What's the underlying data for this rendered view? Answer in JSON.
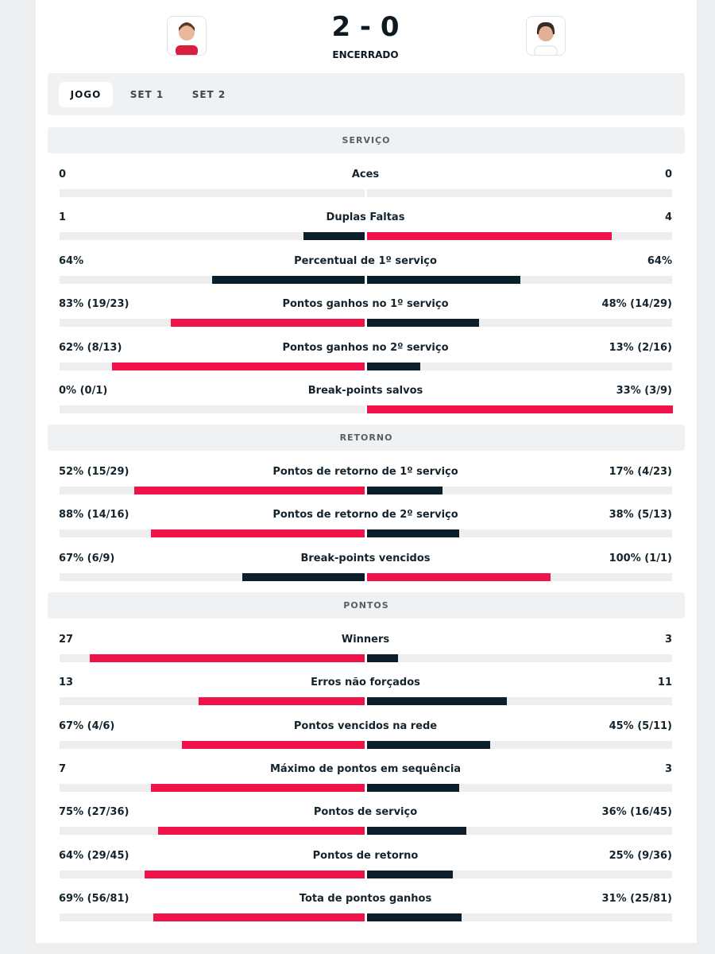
{
  "header": {
    "score": "2 - 0",
    "status": "ENCERRADO"
  },
  "tabs": [
    "JOGO",
    "SET 1",
    "SET 2"
  ],
  "sections": [
    {
      "title": "SERVIÇO",
      "rows": [
        {
          "label": "Aces",
          "left": 0,
          "right": 0
        },
        {
          "label": "Duplas Faltas",
          "left": 1,
          "right": 4
        },
        {
          "label": "Percentual de 1º serviço",
          "left": {
            "value": 64,
            "label": "64%"
          },
          "right": {
            "value": 64,
            "label": "64%"
          }
        },
        {
          "label": "Pontos ganhos no 1º serviço",
          "left": {
            "value": 83,
            "label": "83% (19/23)"
          },
          "right": {
            "value": 48,
            "label": "48% (14/29)"
          }
        },
        {
          "label": "Pontos ganhos no 2º serviço",
          "left": {
            "value": 62,
            "label": "62% (8/13)"
          },
          "right": {
            "value": 13,
            "label": "13% (2/16)"
          }
        },
        {
          "label": "Break-points salvos",
          "left": {
            "value": 0,
            "label": "0% (0/1)"
          },
          "right": {
            "value": 33,
            "label": "33% (3/9)"
          }
        }
      ]
    },
    {
      "title": "RETORNO",
      "rows": [
        {
          "label": "Pontos de retorno de 1º serviço",
          "left": {
            "value": 52,
            "label": "52% (15/29)"
          },
          "right": {
            "value": 17,
            "label": "17% (4/23)"
          }
        },
        {
          "label": "Pontos de retorno de 2º serviço",
          "left": {
            "value": 88,
            "label": "88% (14/16)"
          },
          "right": {
            "value": 38,
            "label": "38% (5/13)"
          }
        },
        {
          "label": "Break-points vencidos",
          "left": {
            "value": 67,
            "label": "67% (6/9)"
          },
          "right": {
            "value": 100,
            "label": "100% (1/1)"
          }
        }
      ]
    },
    {
      "title": "PONTOS",
      "rows": [
        {
          "label": "Winners",
          "left": 27,
          "right": 3
        },
        {
          "label": "Erros não forçados",
          "left": 13,
          "right": 11
        },
        {
          "label": "Pontos vencidos na rede",
          "left": {
            "value": 67,
            "label": "67% (4/6)"
          },
          "right": {
            "value": 45,
            "label": "45% (5/11)"
          }
        },
        {
          "label": "Máximo de pontos em sequência",
          "left": 7,
          "right": 3
        },
        {
          "label": "Pontos de serviço",
          "left": {
            "value": 75,
            "label": "75% (27/36)"
          },
          "right": {
            "value": 36,
            "label": "36% (16/45)"
          }
        },
        {
          "label": "Pontos de retorno",
          "left": {
            "value": 64,
            "label": "64% (29/45)"
          },
          "right": {
            "value": 25,
            "label": "25% (9/36)"
          }
        },
        {
          "label": "Tota de pontos ganhos",
          "left": {
            "value": 69,
            "label": "69% (56/81)"
          },
          "right": {
            "value": 31,
            "label": "31% (25/81)"
          }
        }
      ]
    }
  ]
}
